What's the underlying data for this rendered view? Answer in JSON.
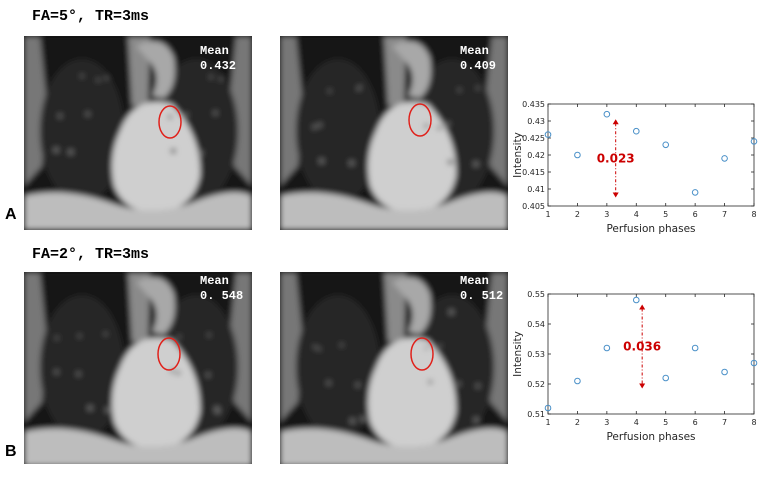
{
  "figure": {
    "rows": [
      {
        "title": "FA=5°, TR=3ms",
        "letter": "A",
        "images": [
          {
            "mean_label": "Mean",
            "mean_value": "0.432"
          },
          {
            "mean_label": "Mean",
            "mean_value": "0.409"
          }
        ]
      },
      {
        "title": "FA=2°, TR=3ms",
        "letter": "B",
        "images": [
          {
            "mean_label": "Mean",
            "mean_value": "0. 548"
          },
          {
            "mean_label": "Mean",
            "mean_value": "0. 512"
          }
        ]
      }
    ],
    "roi_color": "#e0211b"
  },
  "chart_data": [
    {
      "type": "scatter",
      "title": "",
      "xlabel": "Perfusion phases",
      "ylabel": "Intensity",
      "xlim": [
        1,
        8
      ],
      "ylim": [
        0.405,
        0.435
      ],
      "xticks": [
        "1",
        "2",
        "3",
        "4",
        "5",
        "6",
        "7",
        "8"
      ],
      "yticks": [
        "0.405",
        "0.41",
        "0.415",
        "0.42",
        "0.425",
        "0.43",
        "0.435"
      ],
      "x": [
        1,
        2,
        3,
        4,
        5,
        6,
        7,
        8
      ],
      "y": [
        0.426,
        0.42,
        0.432,
        0.427,
        0.423,
        0.409,
        0.419,
        0.424
      ],
      "marker_color": "#4a90c8",
      "annotation": {
        "text": "0.023",
        "x": 3.3,
        "y_top": 0.4305,
        "y_bottom": 0.4075,
        "color": "#cc0000"
      }
    },
    {
      "type": "scatter",
      "title": "",
      "xlabel": "Perfusion phases",
      "ylabel": "Intensity",
      "xlim": [
        1,
        8
      ],
      "ylim": [
        0.51,
        0.55
      ],
      "xticks": [
        "1",
        "2",
        "3",
        "4",
        "5",
        "6",
        "7",
        "8"
      ],
      "yticks": [
        "0.51",
        "0.52",
        "0.53",
        "0.54",
        "0.55"
      ],
      "x": [
        1,
        2,
        3,
        4,
        5,
        6,
        7,
        8
      ],
      "y": [
        0.512,
        0.521,
        0.532,
        0.548,
        0.522,
        0.532,
        0.524,
        0.527
      ],
      "marker_color": "#4a90c8",
      "annotation": {
        "text": "0.036",
        "x": 4.2,
        "y_top": 0.5465,
        "y_bottom": 0.5185,
        "color": "#cc0000"
      }
    }
  ]
}
